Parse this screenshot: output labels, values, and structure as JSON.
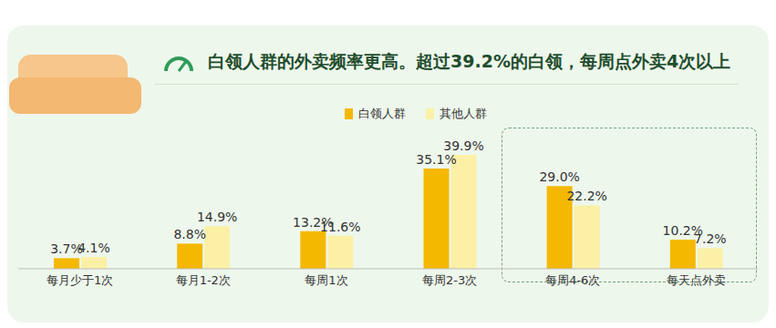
{
  "chart_data": {
    "type": "bar",
    "title": "白领人群的外卖频率更高。超过39.2%的白领，每周点外卖4次以上",
    "categories": [
      "每月少于1次",
      "每月1-2次",
      "每周1次",
      "每周2-3次",
      "每周4-6次",
      "每天点外卖"
    ],
    "series": [
      {
        "name": "白领人群",
        "color": "#F5B800",
        "values": [
          3.7,
          8.8,
          13.2,
          35.1,
          29.0,
          10.2
        ],
        "value_labels": [
          "3.7%",
          "8.8%",
          "13.2%",
          "35.1%",
          "29.0%",
          "10.2%"
        ]
      },
      {
        "name": "其他人群",
        "color": "#FBF0A6",
        "values": [
          4.1,
          14.9,
          11.6,
          39.9,
          22.2,
          7.2
        ],
        "value_labels": [
          "4.1%",
          "14.9%",
          "11.6%",
          "39.9%",
          "22.2%",
          "7.2%"
        ]
      }
    ],
    "ylim": [
      0,
      45
    ],
    "legend": "top",
    "data_labels": true,
    "tick_labels": "x",
    "grid": false
  }
}
